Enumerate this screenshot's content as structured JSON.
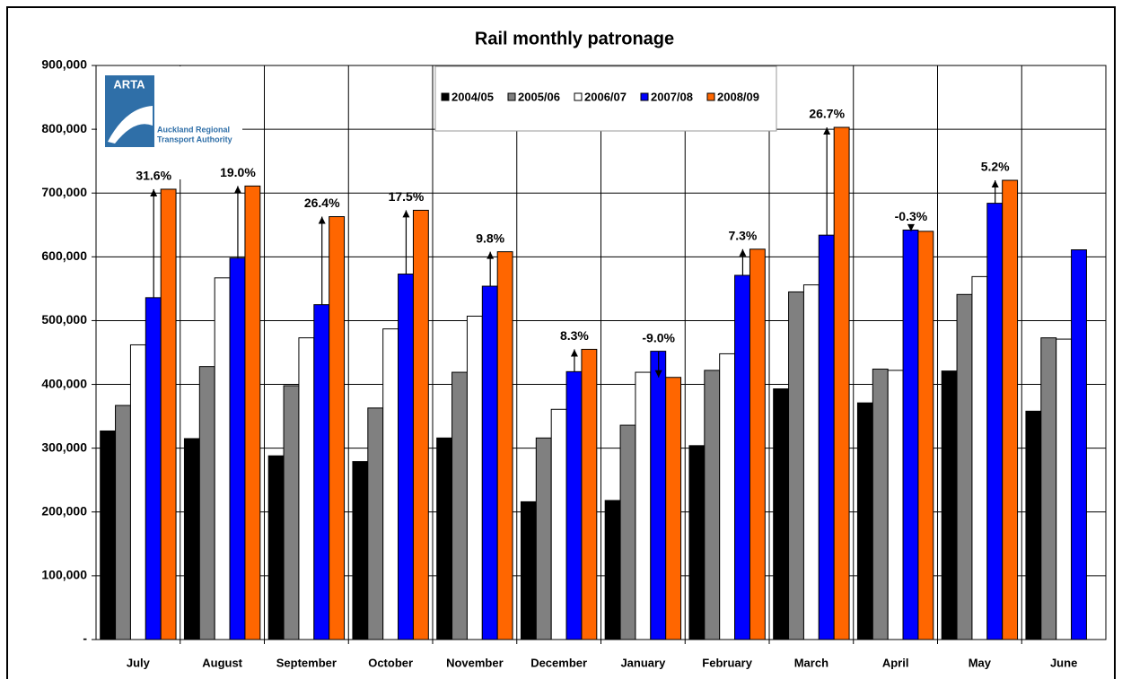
{
  "logo": {
    "name": "ARTA",
    "line1": "Auckland Regional",
    "line2": "Transport Authority"
  },
  "chart_data": {
    "type": "bar",
    "title": "Rail monthly patronage",
    "categories": [
      "July",
      "August",
      "September",
      "October",
      "November",
      "December",
      "January",
      "February",
      "March",
      "April",
      "May",
      "June"
    ],
    "series": [
      {
        "name": "2004/05",
        "color": "#000000",
        "values": [
          327000,
          315000,
          288000,
          279000,
          316000,
          216000,
          218000,
          304000,
          393000,
          371000,
          421000,
          358000
        ]
      },
      {
        "name": "2005/06",
        "color": "#808080",
        "values": [
          367000,
          428000,
          398000,
          363000,
          419000,
          316000,
          336000,
          422000,
          545000,
          424000,
          541000,
          473000
        ]
      },
      {
        "name": "2006/07",
        "color": "#ffffff",
        "values": [
          462000,
          567000,
          473000,
          487000,
          507000,
          361000,
          419000,
          448000,
          556000,
          422000,
          569000,
          471000
        ]
      },
      {
        "name": "2007/08",
        "color": "#0000ff",
        "values": [
          536000,
          598000,
          525000,
          573000,
          554000,
          420000,
          452000,
          571000,
          634000,
          642000,
          684000,
          611000
        ]
      },
      {
        "name": "2008/09",
        "color": "#ff6600",
        "values": [
          706000,
          711000,
          663000,
          673000,
          608000,
          455000,
          411000,
          612000,
          803000,
          640000,
          720000,
          null
        ]
      }
    ],
    "annotations": [
      "31.6%",
      "19.0%",
      "26.4%",
      "17.5%",
      "9.8%",
      "8.3%",
      "-9.0%",
      "7.3%",
      "26.7%",
      "-0.3%",
      "5.2%",
      null
    ],
    "ylim": [
      0,
      900000
    ],
    "yticks": [
      {
        "value": 0,
        "label": "-"
      },
      {
        "value": 100000,
        "label": "100,000"
      },
      {
        "value": 200000,
        "label": "200,000"
      },
      {
        "value": 300000,
        "label": "300,000"
      },
      {
        "value": 400000,
        "label": "400,000"
      },
      {
        "value": 500000,
        "label": "500,000"
      },
      {
        "value": 600000,
        "label": "600,000"
      },
      {
        "value": 700000,
        "label": "700,000"
      },
      {
        "value": 800000,
        "label": "800,000"
      },
      {
        "value": 900000,
        "label": "900,000"
      }
    ],
    "grid": true
  }
}
